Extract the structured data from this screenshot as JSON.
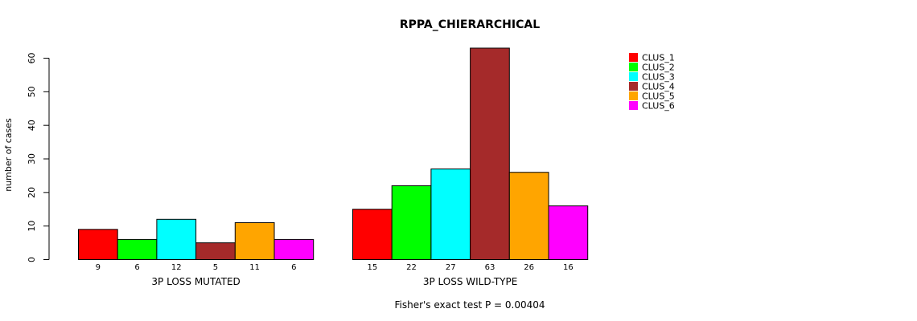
{
  "chart_data": {
    "type": "bar",
    "title": "RPPA_CHIERARCHICAL",
    "ylabel": "number of cases",
    "xlabel": "",
    "ylim": [
      0,
      63
    ],
    "yticks": [
      0,
      10,
      20,
      30,
      40,
      50,
      60
    ],
    "groups": [
      "3P LOSS MUTATED",
      "3P LOSS WILD-TYPE"
    ],
    "series": [
      {
        "name": "CLUS_1",
        "color": "#ff0000",
        "values": [
          9,
          15
        ]
      },
      {
        "name": "CLUS_2",
        "color": "#00ff00",
        "values": [
          6,
          22
        ]
      },
      {
        "name": "CLUS_3",
        "color": "#00ffff",
        "values": [
          12,
          27
        ]
      },
      {
        "name": "CLUS_4",
        "color": "#a52a2a",
        "values": [
          5,
          63
        ]
      },
      {
        "name": "CLUS_5",
        "color": "#ffa500",
        "values": [
          11,
          26
        ]
      },
      {
        "name": "CLUS_6",
        "color": "#ff00ff",
        "values": [
          6,
          16
        ]
      }
    ],
    "bar_labels": [
      [
        "9",
        "6",
        "12",
        "5",
        "11",
        "6"
      ],
      [
        "15",
        "22",
        "27",
        "63",
        "26",
        "16"
      ]
    ],
    "footer": "Fisher's exact test P = 0.00404",
    "legend_position": "top-right"
  }
}
